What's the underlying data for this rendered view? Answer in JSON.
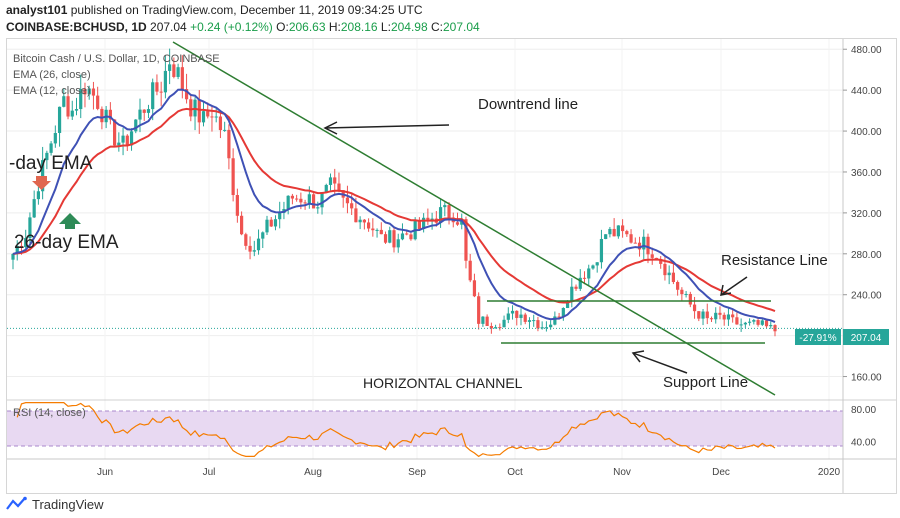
{
  "header": {
    "author": "analyst101",
    "published_text": " published on TradingView.com, December 11, 2019 09:34:25 UTC",
    "symbol": "COINBASE:BCHUSD, 1D",
    "last": "207.04",
    "change": "+0.24 (+0.12%)",
    "o_label": "O:",
    "o_value": "206.63",
    "h_label": "H:",
    "h_value": "208.16",
    "l_label": "L:",
    "l_value": "204.98",
    "c_label": "C:",
    "c_value": "207.04"
  },
  "legend": {
    "title": "Bitcoin Cash / U.S. Dollar, 1D, COINBASE",
    "ema26": "EMA (26, close)",
    "ema12": "EMA (12, close)",
    "rsi": "RSI (14, close)"
  },
  "annotations": {
    "downtrend": "Downtrend line",
    "ema_left": "-day EMA",
    "ema26": "26-day EMA",
    "resistance": "Resistance Line",
    "support": "Support Line",
    "channel": "HORIZONTAL CHANNEL"
  },
  "price_badge": {
    "pct": "-27.91%",
    "price": "207.04",
    "current_level": 207.04
  },
  "footer": {
    "brand": "TradingView"
  },
  "colors": {
    "up": "#26a69a",
    "down": "#ef5350",
    "ema26": "#e53935",
    "ema12": "#3f51b5",
    "trend": "#2e7d32",
    "rsi": "#f57c00",
    "rsi_band": "#e1bee7"
  },
  "chart_data": {
    "type": "candlestick",
    "price_axis": {
      "min": 140,
      "max": 490,
      "ticks": [
        160,
        200,
        240,
        280,
        320,
        360,
        400,
        440,
        480
      ],
      "tick_labels": [
        "160.00",
        "200.00",
        "240.00",
        "280.00",
        "320.00",
        "360.00",
        "400.00",
        "440.00",
        "480.00"
      ]
    },
    "time_axis": {
      "labels": [
        "Jun",
        "Jul",
        "Aug",
        "Sep",
        "Oct",
        "Nov",
        "Dec",
        "2020"
      ]
    },
    "rsi_axis": {
      "min": 20,
      "max": 90,
      "ticks": [
        40,
        80
      ],
      "tick_labels": [
        "40.00",
        "80.00"
      ],
      "band": [
        30,
        70
      ]
    },
    "price_path": [
      [
        0,
        280
      ],
      [
        3,
        300
      ],
      [
        6,
        350
      ],
      [
        9,
        390
      ],
      [
        12,
        430
      ],
      [
        14,
        420
      ],
      [
        17,
        445
      ],
      [
        20,
        430
      ],
      [
        23,
        400
      ],
      [
        26,
        385
      ],
      [
        29,
        410
      ],
      [
        32,
        430
      ],
      [
        35,
        445
      ],
      [
        37,
        470
      ],
      [
        39,
        455
      ],
      [
        42,
        425
      ],
      [
        45,
        410
      ],
      [
        47,
        420
      ],
      [
        50,
        395
      ],
      [
        52,
        345
      ],
      [
        54,
        300
      ],
      [
        57,
        285
      ],
      [
        60,
        305
      ],
      [
        63,
        320
      ],
      [
        66,
        335
      ],
      [
        69,
        335
      ],
      [
        72,
        330
      ],
      [
        75,
        345
      ],
      [
        78,
        330
      ],
      [
        81,
        320
      ],
      [
        84,
        310
      ],
      [
        87,
        295
      ],
      [
        90,
        295
      ],
      [
        93,
        300
      ],
      [
        96,
        305
      ],
      [
        99,
        315
      ],
      [
        101,
        320
      ],
      [
        104,
        320
      ],
      [
        106,
        310
      ],
      [
        107,
        270
      ],
      [
        110,
        215
      ],
      [
        113,
        213
      ],
      [
        116,
        215
      ],
      [
        119,
        222
      ],
      [
        122,
        218
      ],
      [
        125,
        210
      ],
      [
        128,
        215
      ],
      [
        131,
        240
      ],
      [
        134,
        258
      ],
      [
        137,
        270
      ],
      [
        140,
        300
      ],
      [
        143,
        300
      ],
      [
        146,
        295
      ],
      [
        149,
        290
      ],
      [
        152,
        280
      ],
      [
        155,
        260
      ],
      [
        158,
        240
      ],
      [
        161,
        225
      ],
      [
        164,
        215
      ],
      [
        167,
        218
      ],
      [
        170,
        213
      ],
      [
        173,
        210
      ],
      [
        176,
        210
      ],
      [
        180,
        205
      ]
    ]
  }
}
